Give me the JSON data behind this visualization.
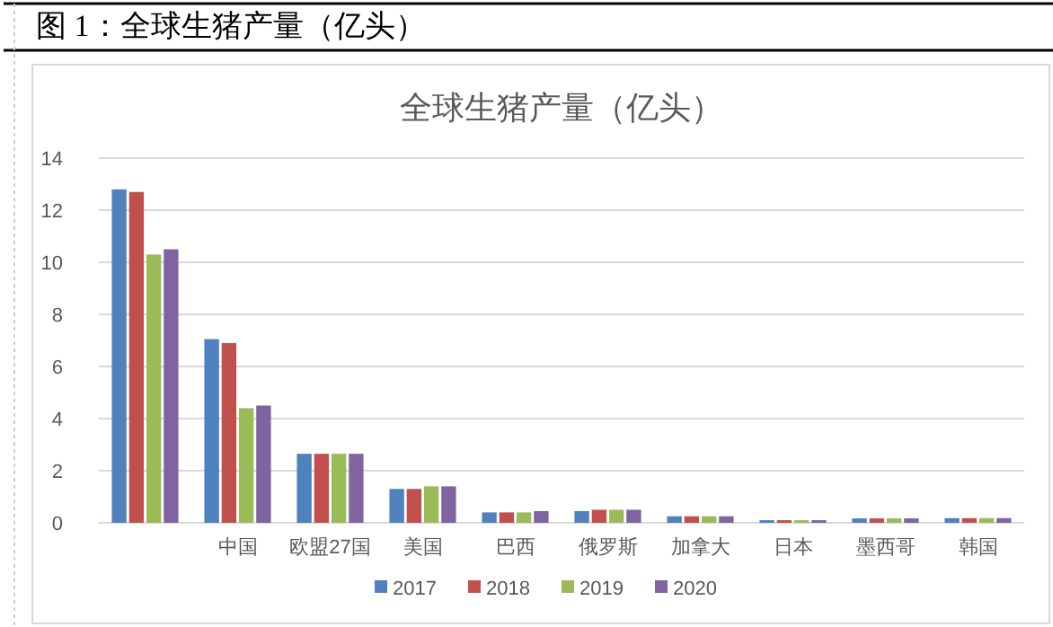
{
  "chart_data": {
    "type": "bar",
    "title": "图 1：全球生猪产量（亿头）",
    "subtitle": "全球生猪产量（亿头）",
    "categories": [
      null,
      "中国",
      "欧盟27国",
      "美国",
      "巴西",
      "俄罗斯",
      "加拿大",
      "日本",
      "墨西哥",
      "韩国"
    ],
    "series": [
      {
        "name": "2017",
        "color": "#4f81bd",
        "values": [
          12.8,
          7.05,
          2.65,
          1.3,
          0.4,
          0.45,
          0.25,
          0.1,
          0.17,
          0.18
        ]
      },
      {
        "name": "2018",
        "color": "#c0504d",
        "values": [
          12.7,
          6.9,
          2.65,
          1.3,
          0.4,
          0.5,
          0.25,
          0.1,
          0.17,
          0.18
        ]
      },
      {
        "name": "2019",
        "color": "#9bbb59",
        "values": [
          10.3,
          4.4,
          2.65,
          1.4,
          0.4,
          0.5,
          0.25,
          0.1,
          0.17,
          0.18
        ]
      },
      {
        "name": "2020",
        "color": "#8064a2",
        "values": [
          10.5,
          4.5,
          2.65,
          1.4,
          0.45,
          0.5,
          0.25,
          0.1,
          0.17,
          0.18
        ]
      }
    ],
    "ylim": [
      0,
      14
    ],
    "yticks": [
      0,
      2,
      4,
      6,
      8,
      10,
      12,
      14
    ],
    "grid": "y",
    "legend": "bottom"
  }
}
